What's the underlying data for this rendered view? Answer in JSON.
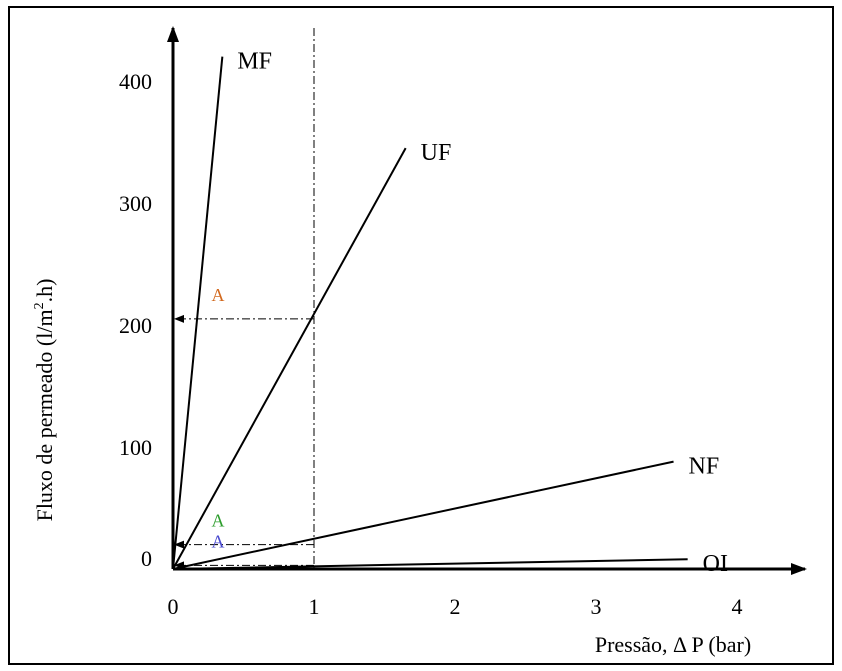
{
  "chart_data": {
    "type": "line",
    "xlabel": "Pressão, Δ P  (bar)",
    "ylabel_main": "Fluxo de permeado (l/m",
    "ylabel_sup": "2",
    "ylabel_tail": ".h)",
    "xlim": [
      0,
      4.5
    ],
    "ylim": [
      0,
      440
    ],
    "x_ticks": [
      "0",
      "1",
      "2",
      "3",
      "4"
    ],
    "y_ticks": [
      "0",
      "100",
      "200",
      "300",
      "400"
    ],
    "grid": false,
    "series": [
      {
        "name": "MF",
        "x": [
          0,
          0.35
        ],
        "y": [
          0,
          420
        ]
      },
      {
        "name": "UF",
        "x": [
          0,
          1.65
        ],
        "y": [
          0,
          345
        ]
      },
      {
        "name": "NF",
        "x": [
          0,
          3.55
        ],
        "y": [
          0,
          88
        ]
      },
      {
        "name": "OI",
        "x": [
          0,
          3.65
        ],
        "y": [
          0,
          8
        ]
      }
    ],
    "annotations": [
      {
        "label": "A",
        "x": 1,
        "y": 205,
        "color": "#d2691e"
      },
      {
        "label": "A",
        "x": 1,
        "y": 20,
        "color": "#2e9e2e"
      },
      {
        "label": "A",
        "x": 1,
        "y": 3,
        "color": "#4a4acf"
      }
    ],
    "vertical_reference_x": 1
  }
}
